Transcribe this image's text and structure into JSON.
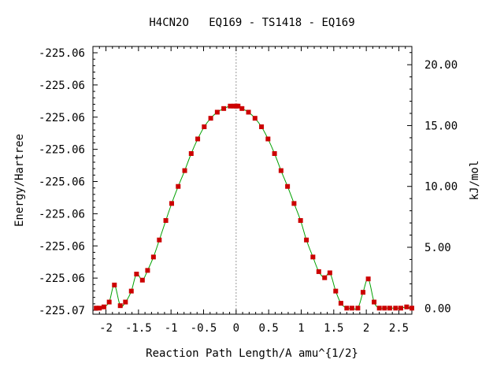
{
  "chart_data": {
    "type": "line",
    "title": "H4CN2O   EQ169 - TS1418 - EQ169",
    "xlabel": "Reaction Path Length/A amu^{1/2}",
    "ylabel": "Energy/Hartree",
    "y2label": "kJ/mol",
    "xlim": [
      -2.2,
      2.7
    ],
    "ylim": [
      -0.5,
      21.5
    ],
    "x_ticks": [
      -2,
      -1.5,
      -1,
      -0.5,
      0,
      0.5,
      1,
      1.5,
      2,
      2.5
    ],
    "x_tick_labels": [
      "-2",
      "-1.5",
      "-1",
      "-0.5",
      "0",
      "0.5",
      "1",
      "1.5",
      "2",
      "2.5"
    ],
    "y_left_tick_labels": [
      "-225.07",
      "-225.06",
      "-225.06",
      "-225.06",
      "-225.06",
      "-225.06",
      "-225.06",
      "-225.06",
      "-225.06"
    ],
    "y_right_ticks": [
      0,
      5,
      10,
      15,
      20
    ],
    "y_right_tick_labels": [
      "0.00",
      "5.00",
      "10.00",
      "15.00",
      "20.00"
    ],
    "series": [
      {
        "x": [
          -2.15,
          -2.1,
          -2.03,
          -1.95,
          -1.87,
          -1.78,
          -1.7,
          -1.61,
          -1.53,
          -1.44,
          -1.36,
          -1.27,
          -1.18,
          -1.08,
          -0.99,
          -0.89,
          -0.79,
          -0.69,
          -0.59,
          -0.49,
          -0.39,
          -0.29,
          -0.19,
          -0.09,
          -0.03,
          0.0,
          0.03,
          0.09,
          0.19,
          0.29,
          0.39,
          0.49,
          0.59,
          0.69,
          0.79,
          0.89,
          0.99,
          1.08,
          1.18,
          1.27,
          1.36,
          1.44,
          1.53,
          1.61,
          1.7,
          1.78,
          1.87,
          1.95,
          2.03,
          2.12,
          2.2,
          2.28,
          2.36,
          2.45,
          2.53,
          2.62,
          2.7
        ],
        "y": [
          0.0,
          0.0,
          0.1,
          0.5,
          1.9,
          0.2,
          0.5,
          1.4,
          2.8,
          2.3,
          3.1,
          4.2,
          5.6,
          7.2,
          8.6,
          10.0,
          11.3,
          12.7,
          13.9,
          14.9,
          15.6,
          16.1,
          16.4,
          16.6,
          16.6,
          16.6,
          16.6,
          16.4,
          16.1,
          15.6,
          14.9,
          13.9,
          12.7,
          11.3,
          10.0,
          8.6,
          7.2,
          5.6,
          4.2,
          3.0,
          2.5,
          2.9,
          1.4,
          0.4,
          0.0,
          0.0,
          0.0,
          1.3,
          2.4,
          0.5,
          0.0,
          0.0,
          0.0,
          0.0,
          0.0,
          0.1,
          0.0
        ]
      }
    ],
    "grid": false,
    "colors": {
      "line": "#00a000",
      "marker": "#cc0000",
      "zero_line": "#999999"
    }
  }
}
